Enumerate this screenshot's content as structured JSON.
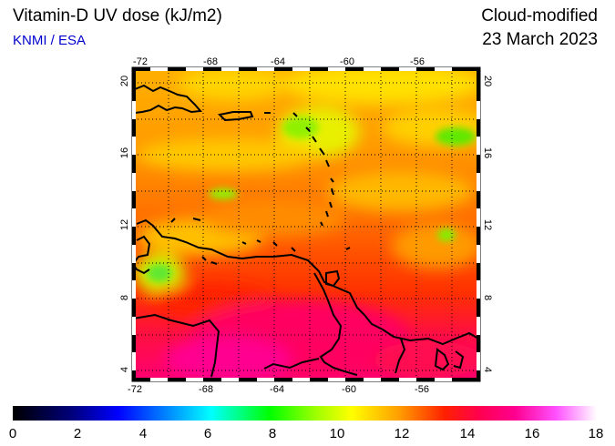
{
  "header": {
    "title": "Vitamin-D UV dose (kJ/m2)",
    "source": "KNMI / ESA",
    "product": "Cloud-modified",
    "date": "23 March 2023"
  },
  "map": {
    "lon_range": [
      -73,
      -53
    ],
    "lat_range": [
      3.5,
      20.5
    ],
    "lon_ticks": [
      "-72",
      "-68",
      "-64",
      "-60",
      "-56"
    ],
    "lat_ticks": [
      "20",
      "16",
      "12",
      "8",
      "4"
    ],
    "region": "Caribbean Sea / Lesser Antilles / northern South America"
  },
  "colorbar": {
    "min": 0,
    "max": 18,
    "tick_labels": [
      "0",
      "2",
      "4",
      "6",
      "8",
      "10",
      "12",
      "14",
      "16",
      "18"
    ],
    "colors": [
      "#000000",
      "#0000a0",
      "#0050ff",
      "#00ffff",
      "#00ff00",
      "#c8ff00",
      "#ffff00",
      "#ff8000",
      "#ff0000",
      "#ff0090",
      "#ff60ff",
      "#ffffff"
    ]
  }
}
